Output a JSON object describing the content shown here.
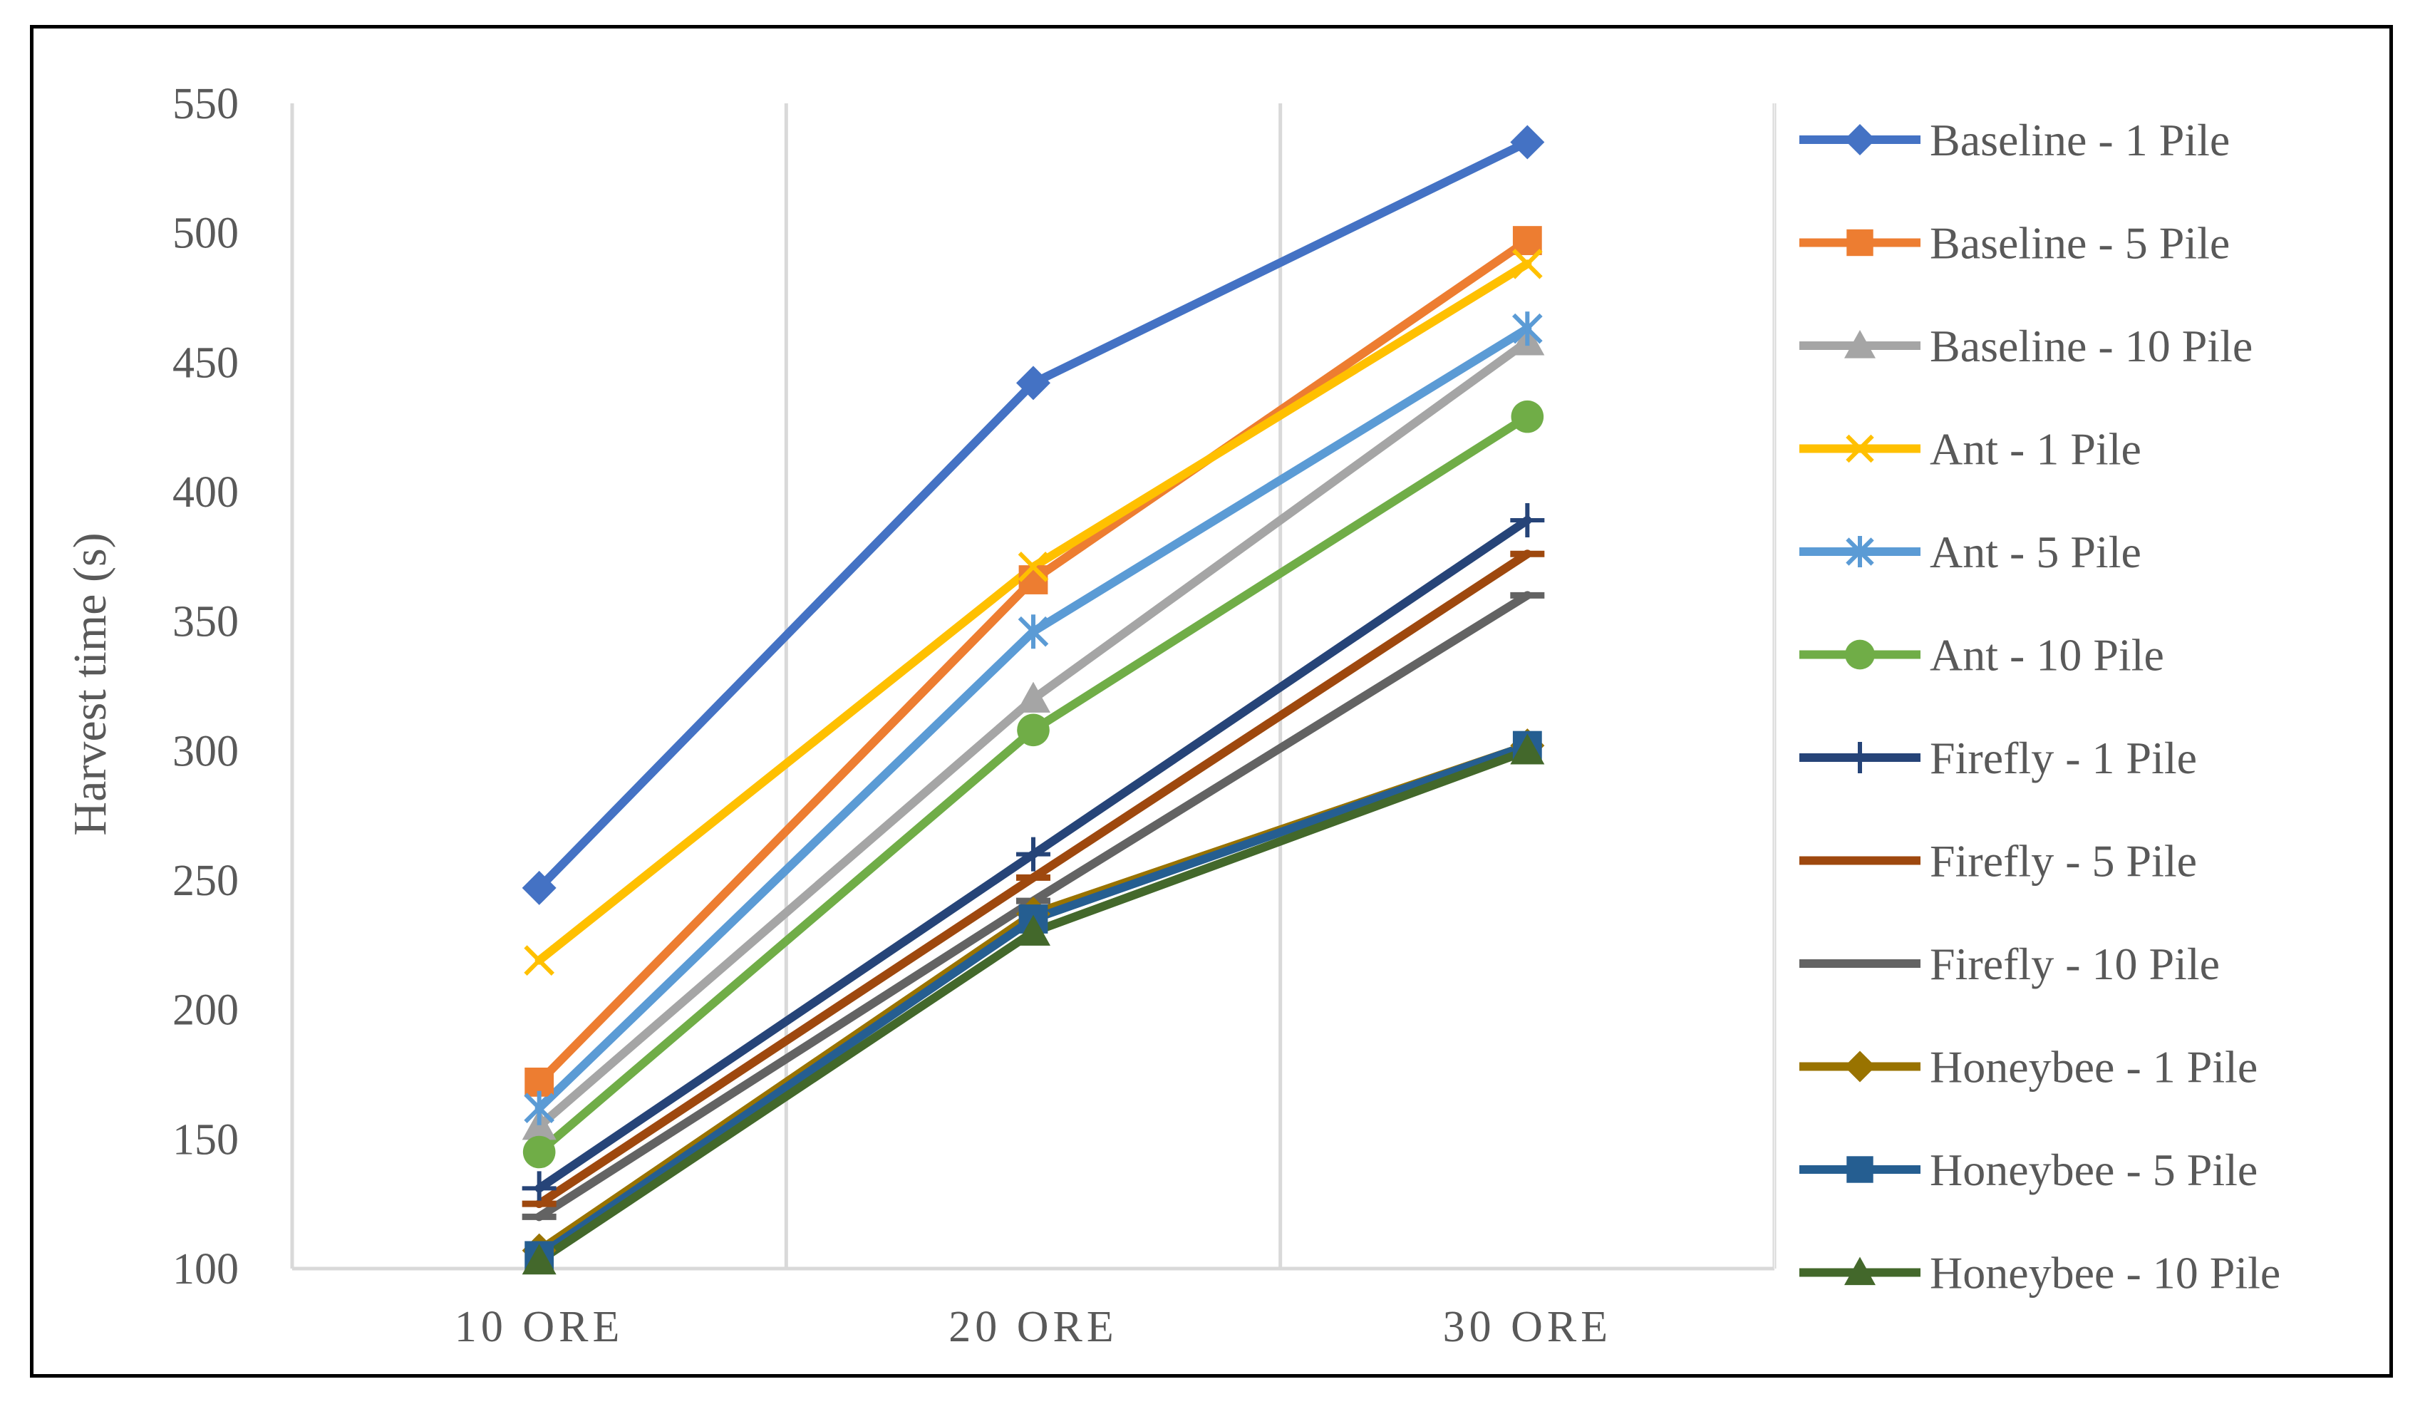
{
  "chart_data": {
    "type": "line",
    "title": "",
    "xlabel": "",
    "ylabel": "Harvest time (s)",
    "categories": [
      "10 ORE",
      "20 ORE",
      "30 ORE"
    ],
    "ylim": [
      100,
      550
    ],
    "yticks": [
      100,
      150,
      200,
      250,
      300,
      350,
      400,
      450,
      500,
      550
    ],
    "grid": "vertical",
    "legend_position": "right",
    "series": [
      {
        "name": "Baseline - 1 Pile",
        "values": [
          247,
          442,
          535
        ],
        "color": "#4472C4",
        "marker": "diamond"
      },
      {
        "name": "Baseline - 5 Pile",
        "values": [
          172,
          366,
          497
        ],
        "color": "#ED7D31",
        "marker": "square"
      },
      {
        "name": "Baseline - 10 Pile",
        "values": [
          155,
          320,
          458
        ],
        "color": "#A5A5A5",
        "marker": "triangle"
      },
      {
        "name": "Ant - 1 Pile",
        "values": [
          219,
          371,
          488
        ],
        "color": "#FFC000",
        "marker": "x"
      },
      {
        "name": "Ant - 5 Pile",
        "values": [
          162,
          346,
          463
        ],
        "color": "#5B9BD5",
        "marker": "star"
      },
      {
        "name": "Ant - 10 Pile",
        "values": [
          145,
          308,
          429
        ],
        "color": "#70AD47",
        "marker": "circle"
      },
      {
        "name": "Firefly - 1 Pile",
        "values": [
          131,
          260,
          389
        ],
        "color": "#264478",
        "marker": "plus"
      },
      {
        "name": "Firefly - 5 Pile",
        "values": [
          125,
          251,
          376
        ],
        "color": "#9E480E",
        "marker": "dash"
      },
      {
        "name": "Firefly - 10 Pile",
        "values": [
          120,
          242,
          360
        ],
        "color": "#636363",
        "marker": "dash"
      },
      {
        "name": "Honeybee - 1 Pile",
        "values": [
          107,
          237,
          302
        ],
        "color": "#997300",
        "marker": "diamond"
      },
      {
        "name": "Honeybee - 5 Pile",
        "values": [
          105,
          235,
          302
        ],
        "color": "#255E91",
        "marker": "square"
      },
      {
        "name": "Honeybee - 10 Pile",
        "values": [
          103,
          230,
          300
        ],
        "color": "#43682B",
        "marker": "triangle"
      }
    ]
  }
}
